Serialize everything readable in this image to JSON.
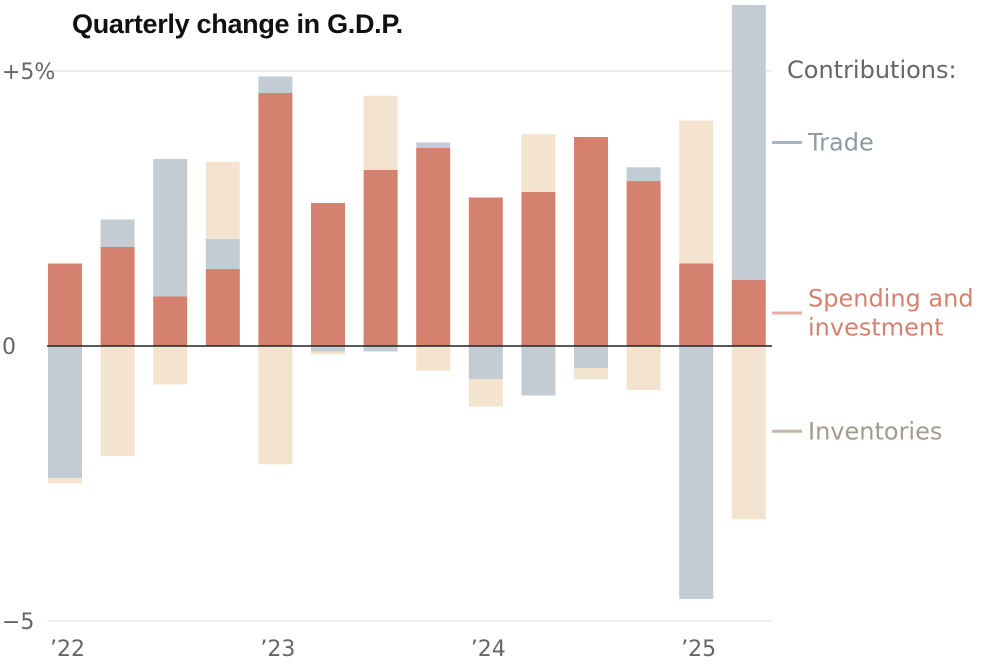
{
  "chart_data": {
    "type": "bar",
    "stacked": true,
    "title": "Quarterly change in G.D.P.",
    "ylim": [
      -5,
      6.2
    ],
    "y_ticks": [
      {
        "value": 5,
        "label": "+5%"
      },
      {
        "value": 0,
        "label": "0"
      },
      {
        "value": -5,
        "label": "−5"
      }
    ],
    "x_tick_labels": [
      {
        "index": 0,
        "label": "’22"
      },
      {
        "index": 4,
        "label": "’23"
      },
      {
        "index": 8,
        "label": "’24"
      },
      {
        "index": 12,
        "label": "’25"
      }
    ],
    "categories": [
      "2022 Q1",
      "2022 Q2",
      "2022 Q3",
      "2022 Q4",
      "2023 Q1",
      "2023 Q2",
      "2023 Q3",
      "2023 Q4",
      "2024 Q1",
      "2024 Q2",
      "2024 Q3",
      "2024 Q4",
      "2025 Q1",
      "2025 Q2"
    ],
    "series": [
      {
        "name": "Spending and investment",
        "color": "#d4826f",
        "values": [
          1.5,
          1.8,
          0.9,
          1.4,
          4.6,
          2.6,
          3.2,
          3.6,
          2.7,
          2.8,
          3.8,
          3.0,
          1.5,
          1.2
        ]
      },
      {
        "name": "Trade",
        "color": "#c3cbd3",
        "values": [
          -2.4,
          0.5,
          2.5,
          0.55,
          0.3,
          -0.1,
          -0.1,
          0.1,
          -0.6,
          -0.9,
          -0.4,
          0.25,
          -4.6,
          5.0
        ]
      },
      {
        "name": "Inventories",
        "color": "#f4e4cf",
        "values": [
          -0.1,
          -2.0,
          -0.7,
          1.4,
          -2.15,
          -0.05,
          1.35,
          -0.45,
          -0.5,
          1.05,
          -0.2,
          -0.8,
          2.6,
          -3.15
        ]
      }
    ],
    "legend": {
      "heading": "Contributions:",
      "entries": [
        {
          "label": "Trade",
          "series": "Trade",
          "anchor_value": 3.7,
          "text_color": "#8d9ba8",
          "line_color": "#a9b4be"
        },
        {
          "label": "Spending and investment",
          "lines": [
            "Spending and",
            "investment"
          ],
          "series": "Spending and investment",
          "anchor_value": 0.6,
          "text_color": "#d4826f",
          "line_color": "#e5b1a4"
        },
        {
          "label": "Inventories",
          "series": "Inventories",
          "anchor_value": -1.55,
          "text_color": "#a39a8c",
          "line_color": "#c2b7a8"
        }
      ]
    }
  }
}
